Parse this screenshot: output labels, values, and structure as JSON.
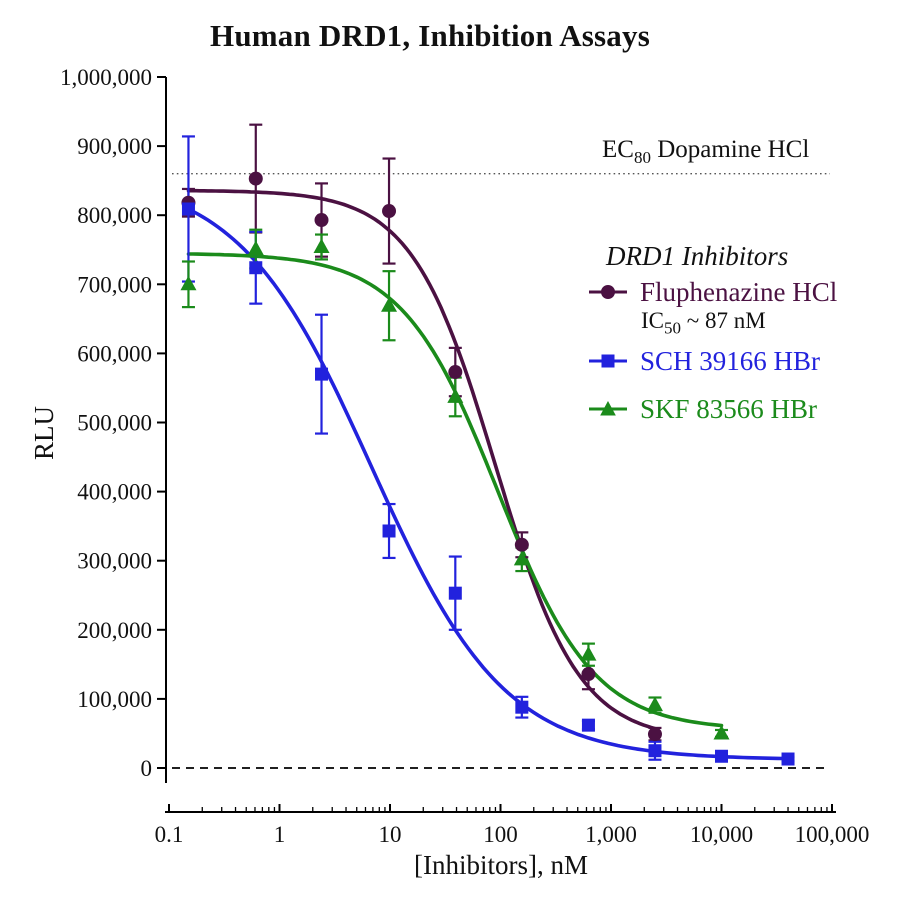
{
  "chart_data": {
    "type": "scatter",
    "curve_model": "four-parameter logistic fit",
    "title": "Human DRD1, Inhibition Assays",
    "xlabel": "[Inhibitors], nM",
    "ylabel": "RLU",
    "x_scale": "log10",
    "xlim": [
      0.1,
      100000
    ],
    "ylim": [
      0,
      1000000
    ],
    "x_ticks": [
      0.1,
      1,
      10,
      100,
      1000,
      10000,
      100000
    ],
    "x_tick_labels": [
      "0.1",
      "1",
      "10",
      "100",
      "1,000",
      "10,000",
      "100,000"
    ],
    "x_minor_ticks": "log decades 2-9",
    "y_ticks": [
      0,
      100000,
      200000,
      300000,
      400000,
      500000,
      600000,
      700000,
      800000,
      900000,
      1000000
    ],
    "y_tick_labels": [
      "0",
      "100,000",
      "200,000",
      "300,000",
      "400,000",
      "500,000",
      "600,000",
      "700,000",
      "800,000",
      "900,000",
      "1,000,000"
    ],
    "grid": false,
    "legend_position": "inside-right",
    "legend_title": "DRD1 Inhibitors",
    "reference_lines": [
      {
        "name": "ec80",
        "value": 860000,
        "style": "dotted",
        "color": "#555555",
        "label": {
          "pre": "EC",
          "sub": "80",
          "post": " Dopamine HCl"
        }
      },
      {
        "name": "zero-baseline",
        "value": 0,
        "style": "dashed",
        "color": "#000000",
        "label": null
      }
    ],
    "series": [
      {
        "name": "fluphenazine-hcl",
        "label": "Fluphenazine HCl",
        "marker": "circle",
        "color": "#4B1142",
        "note": {
          "pre": "IC",
          "sub": "50",
          "post": " ~ 87 nM"
        },
        "x": [
          0.15,
          0.61,
          2.4,
          9.8,
          39,
          156,
          625,
          2500
        ],
        "y": [
          818000,
          853000,
          793000,
          806000,
          573000,
          323000,
          136000,
          49000
        ],
        "yerr": [
          20000,
          78000,
          53000,
          76000,
          35000,
          18000,
          22000,
          9000
        ],
        "fit": {
          "top": 836000,
          "bottom": 40000,
          "ic50": 90,
          "hill": 1.15,
          "x_range": [
            0.15,
            2500
          ]
        }
      },
      {
        "name": "sch-39166-hbr",
        "label": "SCH 39166 HBr",
        "marker": "square",
        "color": "#2222DD",
        "note": null,
        "x": [
          0.15,
          0.61,
          2.4,
          9.8,
          39,
          156,
          625,
          2500,
          10000,
          40000
        ],
        "y": [
          809000,
          724000,
          570000,
          343000,
          253000,
          88000,
          62000,
          25000,
          17000,
          13000
        ],
        "yerr": [
          105000,
          52000,
          86000,
          39000,
          53000,
          15000,
          6000,
          13000,
          4000,
          3000
        ],
        "fit": {
          "top": 860000,
          "bottom": 12000,
          "ic50": 6.8,
          "hill": 0.72,
          "x_range": [
            0.15,
            40000
          ]
        }
      },
      {
        "name": "skf-83566-hbr",
        "label": "SKF 83566 HBr",
        "marker": "triangle",
        "color": "#1B8B1B",
        "note": null,
        "x": [
          0.15,
          0.61,
          2.4,
          9.8,
          39,
          156,
          625,
          2500,
          10000
        ],
        "y": [
          700000,
          751000,
          754000,
          669000,
          537000,
          302000,
          164000,
          91000,
          50000
        ],
        "yerr": [
          33000,
          28000,
          18000,
          50000,
          28000,
          17000,
          16000,
          11000,
          5000
        ],
        "fit": {
          "top": 745000,
          "bottom": 55000,
          "ic50": 95,
          "hill": 1.0,
          "x_range": [
            0.15,
            10000
          ]
        }
      }
    ]
  }
}
